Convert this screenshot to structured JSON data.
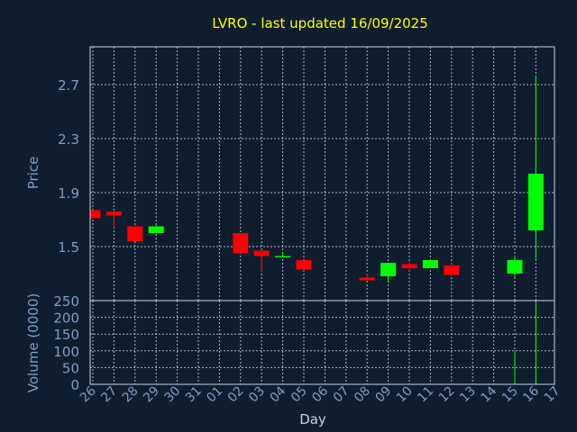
{
  "chart_data": {
    "type": "candlestick",
    "title": "LVRO - last updated 16/09/2025",
    "xlabel": "Day",
    "ylabel_price": "Price",
    "ylabel_volume": "Volume (0000)",
    "x_ticks": [
      "26",
      "27",
      "28",
      "29",
      "30",
      "31",
      "01",
      "02",
      "03",
      "04",
      "05",
      "06",
      "07",
      "08",
      "09",
      "10",
      "11",
      "12",
      "13",
      "14",
      "15",
      "16",
      "17"
    ],
    "price_ticks": [
      1.5,
      1.9,
      2.3,
      2.7
    ],
    "price_ylim": [
      1.1,
      2.98
    ],
    "volume_ticks": [
      0,
      50,
      100,
      150,
      200,
      250
    ],
    "volume_ylim": [
      0,
      250
    ],
    "grid": true,
    "colors": {
      "up": "#00ff00",
      "down": "#ff0000",
      "title": "#ffff00",
      "axis_text": "#7f9fc3",
      "background": "#0f1e2f"
    },
    "candles": [
      {
        "day": "26",
        "open": 1.77,
        "high": 1.77,
        "low": 1.71,
        "close": 1.71
      },
      {
        "day": "27",
        "open": 1.76,
        "high": 1.76,
        "low": 1.64,
        "close": 1.73
      },
      {
        "day": "28",
        "open": 1.65,
        "high": 1.65,
        "low": 1.54,
        "close": 1.54
      },
      {
        "day": "29",
        "open": 1.6,
        "high": 1.66,
        "low": 1.6,
        "close": 1.65
      },
      {
        "day": "02",
        "open": 1.6,
        "high": 1.6,
        "low": 1.45,
        "close": 1.45
      },
      {
        "day": "03",
        "open": 1.47,
        "high": 1.47,
        "low": 1.31,
        "close": 1.43
      },
      {
        "day": "04",
        "open": 1.42,
        "high": 1.46,
        "low": 1.42,
        "close": 1.43
      },
      {
        "day": "05",
        "open": 1.4,
        "high": 1.4,
        "low": 1.32,
        "close": 1.33
      },
      {
        "day": "08",
        "open": 1.27,
        "high": 1.3,
        "low": 1.25,
        "close": 1.25
      },
      {
        "day": "09",
        "open": 1.28,
        "high": 1.38,
        "low": 1.24,
        "close": 1.38
      },
      {
        "day": "10",
        "open": 1.37,
        "high": 1.39,
        "low": 1.32,
        "close": 1.34
      },
      {
        "day": "11",
        "open": 1.34,
        "high": 1.4,
        "low": 1.34,
        "close": 1.4
      },
      {
        "day": "12",
        "open": 1.36,
        "high": 1.39,
        "low": 1.29,
        "close": 1.29
      },
      {
        "day": "15",
        "open": 1.3,
        "high": 1.43,
        "low": 1.27,
        "close": 1.4
      },
      {
        "day": "16",
        "open": 1.62,
        "high": 2.76,
        "low": 1.41,
        "close": 2.04
      }
    ],
    "volume": [
      {
        "day": "15",
        "value": 100
      },
      {
        "day": "16",
        "value": 250
      }
    ]
  }
}
